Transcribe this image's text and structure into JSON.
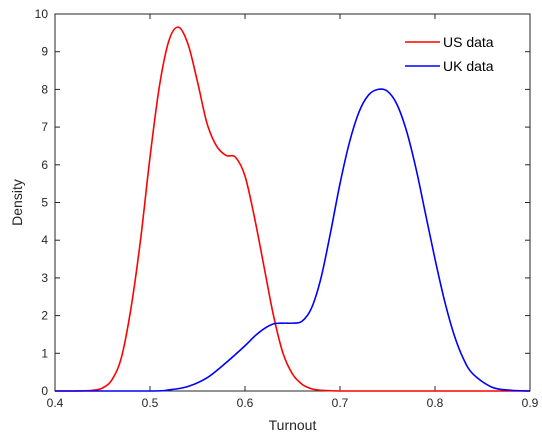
{
  "chart_data": {
    "type": "line",
    "title": "",
    "xlabel": "Turnout",
    "ylabel": "Density",
    "xlim": [
      0.4,
      0.9
    ],
    "ylim": [
      0,
      10
    ],
    "xticks": [
      "0.4",
      "0.5",
      "0.6",
      "0.7",
      "0.8",
      "0.9"
    ],
    "yticks": [
      "0",
      "1",
      "2",
      "3",
      "4",
      "5",
      "6",
      "7",
      "8",
      "9",
      "10"
    ],
    "grid": false,
    "legend": {
      "position": "top-right"
    },
    "series": [
      {
        "name": "US data",
        "color": "#ff0000",
        "x": [
          0.4,
          0.42,
          0.44,
          0.45,
          0.46,
          0.47,
          0.48,
          0.49,
          0.5,
          0.51,
          0.52,
          0.53,
          0.54,
          0.55,
          0.56,
          0.57,
          0.58,
          0.59,
          0.6,
          0.61,
          0.62,
          0.63,
          0.64,
          0.65,
          0.66,
          0.67,
          0.68,
          0.7,
          0.75,
          0.8,
          0.85,
          0.9
        ],
        "y": [
          0.0,
          0.0,
          0.02,
          0.08,
          0.3,
          0.9,
          2.2,
          4.0,
          6.2,
          8.1,
          9.3,
          9.65,
          9.2,
          8.2,
          7.1,
          6.5,
          6.25,
          6.2,
          5.7,
          4.6,
          3.3,
          2.0,
          1.0,
          0.45,
          0.18,
          0.06,
          0.02,
          0.0,
          0.0,
          0.0,
          0.0,
          0.0
        ]
      },
      {
        "name": "UK data",
        "color": "#0000ff",
        "x": [
          0.4,
          0.5,
          0.52,
          0.54,
          0.56,
          0.58,
          0.6,
          0.61,
          0.62,
          0.63,
          0.64,
          0.65,
          0.66,
          0.67,
          0.68,
          0.69,
          0.7,
          0.71,
          0.72,
          0.73,
          0.74,
          0.75,
          0.76,
          0.77,
          0.78,
          0.79,
          0.8,
          0.81,
          0.82,
          0.83,
          0.84,
          0.86,
          0.88,
          0.9
        ],
        "y": [
          0.0,
          0.0,
          0.03,
          0.12,
          0.35,
          0.75,
          1.2,
          1.45,
          1.65,
          1.78,
          1.8,
          1.8,
          1.85,
          2.2,
          3.0,
          4.2,
          5.5,
          6.6,
          7.4,
          7.85,
          8.0,
          7.95,
          7.6,
          6.9,
          5.9,
          4.7,
          3.5,
          2.4,
          1.5,
          0.85,
          0.45,
          0.1,
          0.02,
          0.0
        ]
      }
    ]
  }
}
